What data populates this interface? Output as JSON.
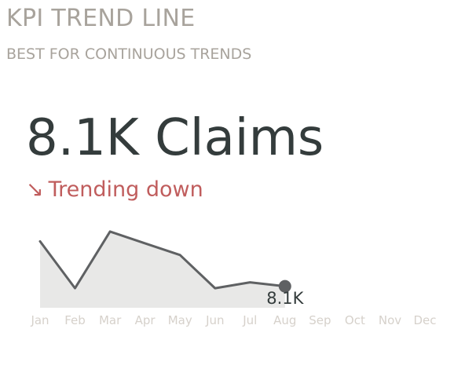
{
  "header": {
    "title": "KPI TREND LINE",
    "subtitle": "BEST FOR CONTINUOUS TRENDS"
  },
  "kpi": {
    "value_label": "8.1K Claims",
    "trend_arrow": "↘",
    "trend_label": "Trending down",
    "trend_color": "#c05d5d",
    "value_color": "#343c3c"
  },
  "chart_data": {
    "type": "area",
    "categories": [
      "Jan",
      "Feb",
      "Mar",
      "Apr",
      "May",
      "Jun",
      "Jul",
      "Aug",
      "Sep",
      "Oct",
      "Nov",
      "Dec"
    ],
    "series": [
      {
        "values": [
          10.4,
          8.0,
          10.9,
          10.3,
          9.7,
          8.0,
          8.3,
          8.1,
          null,
          null,
          null,
          null
        ]
      }
    ],
    "ylim": [
      7.0,
      11.5
    ],
    "last_value_label": "8.1K",
    "line_color": "#5f6163",
    "fill_color": "#e8e8e7",
    "tick_color": "#d6d1cb",
    "grid": false
  }
}
